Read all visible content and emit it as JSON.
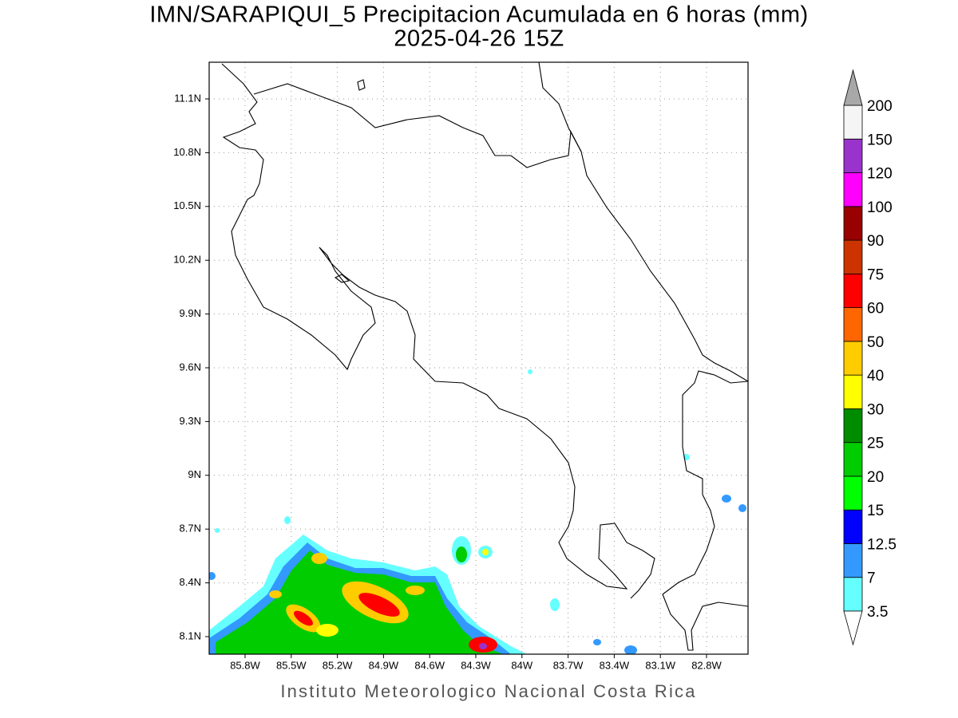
{
  "title": "IMN/SARAPIQUI_5 Precipitacion Acumulada en 6 horas (mm)",
  "subtitle": "2025-04-26 15Z",
  "map": {
    "lon_ticks": [
      "85.8W",
      "85.5W",
      "85.2W",
      "84.9W",
      "84.6W",
      "84.3W",
      "84W",
      "83.7W",
      "83.4W",
      "83.1W",
      "82.8W"
    ],
    "lat_ticks": [
      "11.1N",
      "10.8N",
      "10.5N",
      "10.2N",
      "9.9N",
      "9.6N",
      "9.3N",
      "9N",
      "8.7N",
      "8.4N",
      "8.1N"
    ]
  },
  "colorbar": {
    "levels": [
      3.5,
      7,
      12.5,
      15,
      20,
      25,
      30,
      40,
      50,
      60,
      75,
      90,
      100,
      120,
      150,
      200
    ],
    "colors": [
      "#66ffff",
      "#3399ff",
      "#0000ff",
      "#00ff00",
      "#00cc00",
      "#008c00",
      "#ffff00",
      "#ffcc00",
      "#ff6600",
      "#ff0000",
      "#cc3300",
      "#990000",
      "#ff00ff",
      "#9933cc",
      "#f5f5f5"
    ],
    "over_color": "#a8a8a8",
    "under_color": "#ffffff"
  },
  "footer": "Instituto Meteorologico Nacional Costa Rica"
}
